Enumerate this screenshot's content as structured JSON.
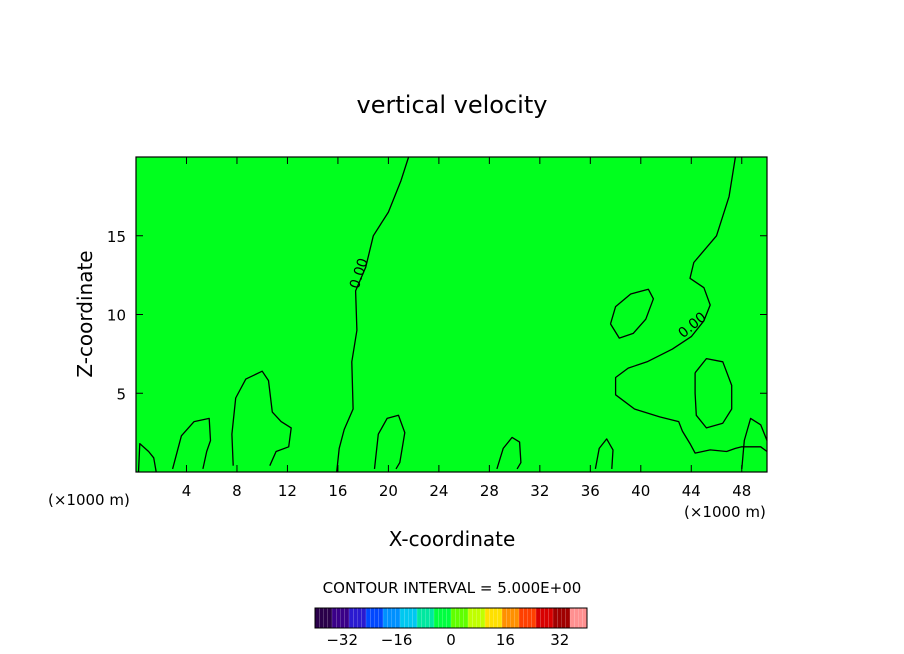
{
  "chart_data": {
    "type": "heatmap",
    "title": "vertical velocity",
    "xlabel": "X-coordinate",
    "ylabel": "Z-coordinate",
    "x_unit_left": "(×1000 m)",
    "x_unit_right": "(×1000 m)",
    "xlim": [
      0,
      50
    ],
    "ylim": [
      0,
      20
    ],
    "x_ticks": [
      "4",
      "8",
      "12",
      "16",
      "20",
      "24",
      "28",
      "32",
      "36",
      "40",
      "44",
      "48"
    ],
    "x_tick_values": [
      4,
      8,
      12,
      16,
      20,
      24,
      28,
      32,
      36,
      40,
      44,
      48
    ],
    "y_ticks": [
      "5",
      "10",
      "15"
    ],
    "y_tick_values": [
      5,
      10,
      15
    ],
    "field_color": "#00ff1e",
    "contour_label": "0.00",
    "contours": [
      {
        "name": "zero-contour-main-left",
        "points": [
          [
            21.6,
            20
          ],
          [
            21,
            18.5
          ],
          [
            20,
            16.5
          ],
          [
            18.8,
            15
          ],
          [
            18.2,
            13
          ],
          [
            17.4,
            11.5
          ],
          [
            17.5,
            9
          ],
          [
            17.1,
            7
          ],
          [
            17.2,
            4
          ],
          [
            16.5,
            2.7
          ],
          [
            16.1,
            1.5
          ],
          [
            15.9,
            0
          ]
        ]
      },
      {
        "name": "zero-contour-main-right",
        "points": [
          [
            47.5,
            20
          ],
          [
            47,
            17.5
          ],
          [
            46,
            15
          ],
          [
            44.2,
            13.3
          ],
          [
            43.9,
            12.3
          ],
          [
            45,
            11.7
          ],
          [
            45.5,
            10.6
          ],
          [
            45,
            9.6
          ],
          [
            44,
            8.6
          ],
          [
            42.5,
            7.8
          ],
          [
            40.5,
            7
          ],
          [
            39,
            6.6
          ],
          [
            38,
            6
          ],
          [
            38,
            4.9
          ],
          [
            39.5,
            4
          ],
          [
            41.5,
            3.5
          ],
          [
            43,
            3.2
          ],
          [
            43.3,
            2.6
          ],
          [
            43.9,
            1.8
          ],
          [
            44.3,
            1.2
          ],
          [
            45.5,
            1.4
          ],
          [
            46.8,
            1.3
          ],
          [
            47.5,
            1.5
          ],
          [
            48,
            1.6
          ],
          [
            49.5,
            1.6
          ],
          [
            50,
            1.3
          ]
        ]
      },
      {
        "name": "closed-contour-upper-right",
        "points": [
          [
            37.6,
            9.4
          ],
          [
            38,
            10.5
          ],
          [
            39.2,
            11.3
          ],
          [
            40.6,
            11.6
          ],
          [
            41,
            11
          ],
          [
            40.4,
            9.7
          ],
          [
            39.4,
            8.8
          ],
          [
            38.3,
            8.5
          ],
          [
            37.6,
            9.4
          ]
        ]
      },
      {
        "name": "closed-contour-lower-right",
        "points": [
          [
            44.3,
            6.3
          ],
          [
            45.2,
            7.2
          ],
          [
            46.5,
            7
          ],
          [
            47.2,
            5.5
          ],
          [
            47.2,
            4
          ],
          [
            46.5,
            3.1
          ],
          [
            45.2,
            2.8
          ],
          [
            44.4,
            3.6
          ],
          [
            44.3,
            5
          ],
          [
            44.3,
            6.3
          ]
        ]
      },
      {
        "name": "closed-contour-left-hump",
        "points": [
          [
            7.7,
            0.4
          ],
          [
            7.6,
            2.4
          ],
          [
            7.9,
            4.7
          ],
          [
            8.7,
            5.9
          ],
          [
            10,
            6.4
          ],
          [
            10.5,
            5.8
          ],
          [
            10.8,
            3.8
          ],
          [
            11.5,
            3.2
          ],
          [
            12.3,
            2.8
          ],
          [
            12.1,
            1.6
          ],
          [
            11.1,
            1.3
          ],
          [
            10.6,
            0.4
          ]
        ]
      },
      {
        "name": "near-ground-contour-a",
        "points": [
          [
            0.2,
            0
          ],
          [
            0.3,
            1.8
          ],
          [
            1,
            1.3
          ],
          [
            1.4,
            0.9
          ],
          [
            1.6,
            0
          ]
        ]
      },
      {
        "name": "near-ground-contour-b",
        "points": [
          [
            2.9,
            0.2
          ],
          [
            3.6,
            2.3
          ],
          [
            4.6,
            3.2
          ],
          [
            5.8,
            3.4
          ],
          [
            5.9,
            2
          ],
          [
            5.6,
            1.3
          ],
          [
            5.3,
            0.2
          ]
        ]
      },
      {
        "name": "near-ground-contour-c",
        "points": [
          [
            18.9,
            0.2
          ],
          [
            19.2,
            2.4
          ],
          [
            19.9,
            3.4
          ],
          [
            20.8,
            3.6
          ],
          [
            21.3,
            2.5
          ],
          [
            20.9,
            0.6
          ],
          [
            20.6,
            0.2
          ]
        ]
      },
      {
        "name": "near-ground-contour-d",
        "points": [
          [
            28.6,
            0.2
          ],
          [
            29.1,
            1.5
          ],
          [
            29.8,
            2.2
          ],
          [
            30.4,
            1.9
          ],
          [
            30.5,
            0.6
          ],
          [
            30.2,
            0.2
          ]
        ]
      },
      {
        "name": "near-ground-contour-e",
        "points": [
          [
            36.4,
            0.2
          ],
          [
            36.7,
            1.5
          ],
          [
            37.3,
            2.1
          ],
          [
            37.8,
            1.4
          ],
          [
            37.7,
            0.2
          ]
        ]
      },
      {
        "name": "near-ground-contour-f",
        "points": [
          [
            48,
            0.2
          ],
          [
            48.2,
            2
          ],
          [
            48.7,
            3.4
          ],
          [
            49.5,
            3
          ],
          [
            50,
            2
          ]
        ]
      }
    ],
    "contour_labels": [
      {
        "text": "0.00",
        "x": 17.7,
        "y": 12.6,
        "angle": -72
      },
      {
        "text": "0.00",
        "x": 44.1,
        "y": 9.3,
        "angle": -40
      }
    ],
    "colorbar": {
      "title": "CONTOUR INTERVAL = 5.000E+00",
      "ticks": [
        "−32",
        "−16",
        "0",
        "16",
        "32"
      ],
      "tick_values": [
        -32,
        -16,
        0,
        16,
        32
      ],
      "range": [
        -40,
        40
      ],
      "colors": [
        "#2a004a",
        "#3a0088",
        "#2a1ad0",
        "#0048ff",
        "#0090ff",
        "#00c8f0",
        "#00e8a0",
        "#00ff40",
        "#60ff00",
        "#c0ff00",
        "#ffe000",
        "#ff9000",
        "#ff4000",
        "#d80000",
        "#a00000",
        "#ff9090"
      ]
    }
  }
}
